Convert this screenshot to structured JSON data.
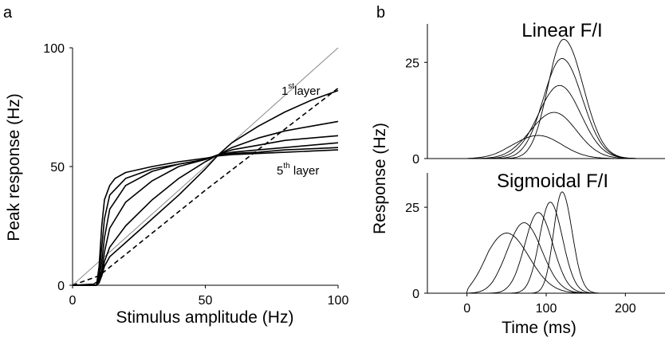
{
  "panels": {
    "a": {
      "letter": "a",
      "chart_data": {
        "type": "line",
        "xlabel": "Stimulus amplitude (Hz)",
        "ylabel": "Peak response (Hz)",
        "xlim": [
          0,
          100
        ],
        "ylim": [
          0,
          100
        ],
        "xticks": [
          0,
          50,
          100
        ],
        "yticks": [
          0,
          50,
          100
        ],
        "xtick_labels": [
          "0",
          "50",
          "100"
        ],
        "ytick_labels": [
          "0",
          "50",
          "100"
        ],
        "annotations": {
          "first": {
            "num": "1",
            "sup": "st",
            "text": "layer"
          },
          "fifth": {
            "num": "5",
            "sup": "th",
            "text": " layer"
          }
        },
        "identity_line": {
          "x": [
            0,
            100
          ],
          "y": [
            0,
            100
          ]
        },
        "dashed_series": {
          "x": [
            0,
            10,
            50,
            100
          ],
          "y": [
            0,
            4,
            40,
            83
          ]
        },
        "series": [
          {
            "layer": 1,
            "x": [
              0,
              8,
              10,
              11,
              12,
              14,
              20,
              30,
              40,
              50,
              55,
              60,
              70,
              80,
              90,
              100
            ],
            "y": [
              0,
              0.5,
              2,
              4,
              8,
              12,
              18,
              28,
              38,
              49,
              55,
              60,
              67,
              73,
              78,
              82
            ]
          },
          {
            "layer": 2,
            "x": [
              0,
              9,
              10,
              11,
              12,
              14,
              20,
              30,
              40,
              50,
              55,
              60,
              70,
              80,
              90,
              100
            ],
            "y": [
              0,
              0,
              1,
              4,
              10,
              16,
              25,
              36,
              45,
              52,
              55,
              58,
              62,
              65,
              67,
              69
            ]
          },
          {
            "layer": 3,
            "x": [
              0,
              9,
              10,
              11,
              12,
              14,
              20,
              30,
              40,
              50,
              55,
              60,
              70,
              80,
              90,
              100
            ],
            "y": [
              0,
              0,
              2,
              6,
              14,
              24,
              35,
              44,
              50,
              53,
              55,
              57,
              59,
              61,
              62,
              63
            ]
          },
          {
            "layer": 4,
            "x": [
              0,
              9,
              10,
              11,
              12,
              14,
              20,
              30,
              40,
              50,
              55,
              60,
              70,
              80,
              90,
              100
            ],
            "y": [
              0,
              0,
              3,
              10,
              20,
              32,
              42,
              48,
              51,
              53,
              55,
              56,
              57,
              58,
              59,
              60
            ]
          },
          {
            "layer": 5,
            "x": [
              0,
              9,
              10,
              11,
              12,
              14,
              20,
              30,
              40,
              50,
              55,
              60,
              70,
              80,
              90,
              100
            ],
            "y": [
              0,
              0,
              5,
              16,
              28,
              38,
              45,
              49,
              51,
              53,
              55,
              55.5,
              56,
              57,
              57.5,
              58
            ]
          },
          {
            "layer": 6,
            "x": [
              0,
              9,
              10,
              11,
              12,
              14,
              16,
              20,
              30,
              40,
              50,
              55,
              60,
              70,
              80,
              90,
              100
            ],
            "y": [
              0,
              0,
              8,
              25,
              36,
              42,
              45,
              47.5,
              50,
              52,
              53.5,
              54.5,
              55,
              55.5,
              56,
              56.5,
              57
            ]
          }
        ]
      }
    },
    "b": {
      "letter": "b",
      "ylabel": "Response (Hz)",
      "xlabel": "Time (ms)",
      "xlim": [
        -50,
        250
      ],
      "xticks": [
        0,
        100,
        200
      ],
      "xtick_labels": [
        "0",
        "100",
        "200"
      ],
      "linear": {
        "title": "Linear F/I",
        "chart_data": {
          "type": "line",
          "ylim": [
            0,
            35
          ],
          "yticks": [
            0,
            25
          ],
          "ytick_labels": [
            "0",
            "25"
          ],
          "series": [
            {
              "peak_t": 90,
              "peak": 6,
              "rise": 45,
              "decay": 42
            },
            {
              "peak_t": 110,
              "peak": 12,
              "rise": 42,
              "decay": 40
            },
            {
              "peak_t": 117,
              "peak": 19,
              "rise": 38,
              "decay": 38
            },
            {
              "peak_t": 120,
              "peak": 26,
              "rise": 33,
              "decay": 36
            },
            {
              "peak_t": 122,
              "peak": 31,
              "rise": 28,
              "decay": 35
            }
          ]
        }
      },
      "sigmoidal": {
        "title": "Sigmoidal F/I",
        "chart_data": {
          "type": "line",
          "ylim": [
            0,
            35
          ],
          "yticks": [
            0,
            25
          ],
          "ytick_labels": [
            "0",
            "25"
          ],
          "series": [
            {
              "peak_t": 50,
              "peak": 17.5,
              "rise": 38,
              "decay": 40
            },
            {
              "peak_t": 72,
              "peak": 20.5,
              "rise": 30,
              "decay": 32
            },
            {
              "peak_t": 90,
              "peak": 23.5,
              "rise": 24,
              "decay": 26
            },
            {
              "peak_t": 105,
              "peak": 26.5,
              "rise": 19,
              "decay": 22
            },
            {
              "peak_t": 120,
              "peak": 29.5,
              "rise": 15,
              "decay": 18
            }
          ]
        }
      }
    }
  }
}
